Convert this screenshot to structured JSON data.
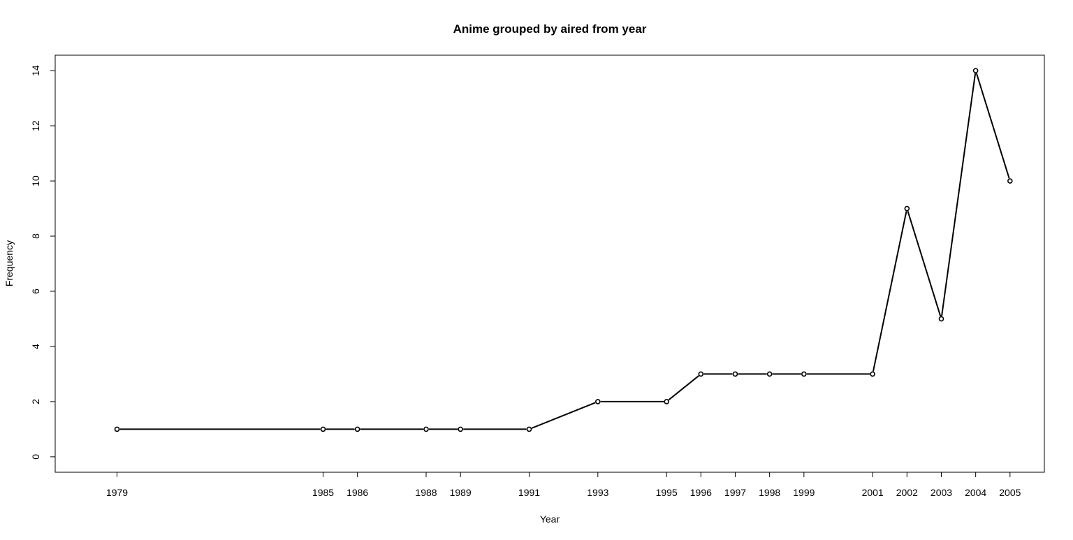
{
  "chart_data": {
    "type": "line",
    "title": "Anime grouped by aired from year",
    "xlabel": "Year",
    "ylabel": "Frequency",
    "x": [
      1979,
      1985,
      1986,
      1988,
      1989,
      1991,
      1993,
      1995,
      1996,
      1997,
      1998,
      1999,
      2001,
      2002,
      2003,
      2004,
      2005
    ],
    "series": [
      {
        "values": [
          1,
          1,
          1,
          1,
          1,
          1,
          2,
          2,
          3,
          3,
          3,
          3,
          3,
          9,
          5,
          14,
          10
        ]
      }
    ],
    "xticks": [
      "1979",
      "1985",
      "1986",
      "1988",
      "1989",
      "1991",
      "1993",
      "1995",
      "1996",
      "1997",
      "1998",
      "1999",
      "2001",
      "2002",
      "2003",
      "2004",
      "2005"
    ],
    "yticks": [
      "0",
      "2",
      "4",
      "6",
      "8",
      "10",
      "12",
      "14"
    ],
    "xlim": [
      1977.2,
      2006.0
    ],
    "ylim": [
      -0.56,
      14.56
    ],
    "line_color": "#000000",
    "marker": "open-circle",
    "grid": false,
    "legend": "none"
  }
}
